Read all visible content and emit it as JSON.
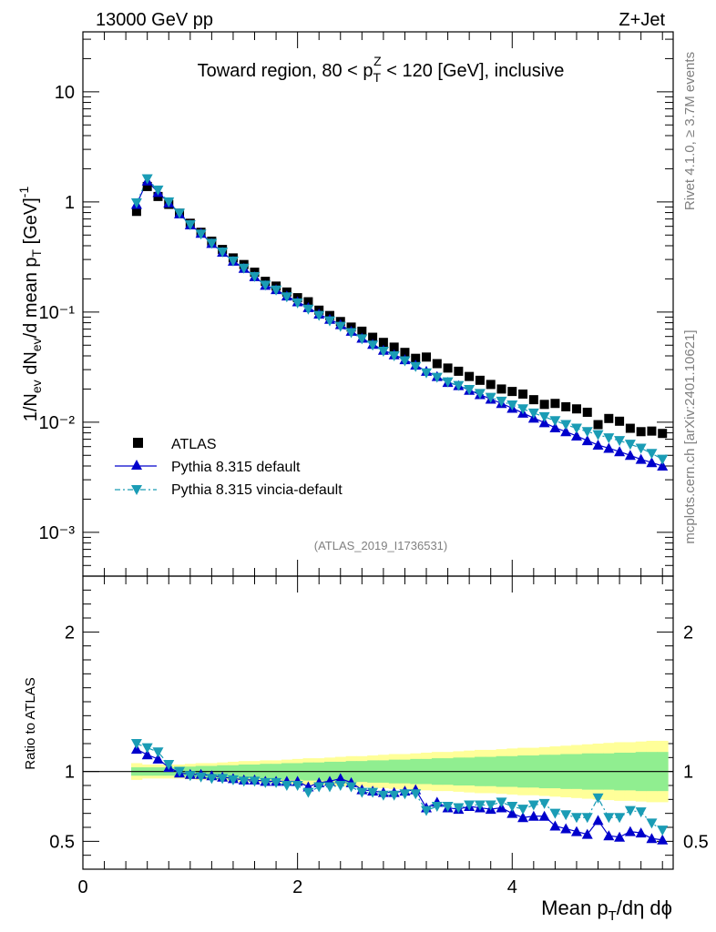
{
  "chart_data": [
    {
      "type": "scatter",
      "panel": "main",
      "y_scale": "log",
      "xlim": [
        0,
        5.5
      ],
      "ylim": [
        0.0004,
        35
      ],
      "top_left_label": "13000 GeV pp",
      "top_right_label": "Z+Jet",
      "title": "Toward region, 80 < p_T^Z < 120 [GeV], inclusive",
      "ylabel": "1/N_ev dN_ev/d mean p_T [GeV]^-1",
      "y_ticks": [
        {
          "label": "10",
          "value": 10
        },
        {
          "label": "1",
          "value": 1
        },
        {
          "label": "10⁻¹",
          "value": 0.1
        },
        {
          "label": "10⁻²",
          "value": 0.01
        },
        {
          "label": "10⁻³",
          "value": 0.001
        }
      ],
      "watermark": "(ATLAS_2019_I1736531)",
      "legend": [
        "ATLAS",
        "Pythia 8.315 default",
        "Pythia 8.315 vincia-default"
      ],
      "x": [
        0.5,
        0.6,
        0.7,
        0.8,
        0.9,
        1.0,
        1.1,
        1.2,
        1.3,
        1.4,
        1.5,
        1.6,
        1.7,
        1.8,
        1.9,
        2.0,
        2.1,
        2.2,
        2.3,
        2.4,
        2.5,
        2.6,
        2.7,
        2.8,
        2.9,
        3.0,
        3.1,
        3.2,
        3.3,
        3.4,
        3.5,
        3.6,
        3.7,
        3.8,
        3.9,
        4.0,
        4.1,
        4.2,
        4.3,
        4.4,
        4.5,
        4.6,
        4.7,
        4.8,
        4.9,
        5.0,
        5.1,
        5.2,
        5.3,
        5.4
      ],
      "series": [
        {
          "name": "ATLAS",
          "marker": "square",
          "color": "#000000",
          "values": [
            0.82,
            1.38,
            1.12,
            0.95,
            0.79,
            0.64,
            0.53,
            0.44,
            0.37,
            0.31,
            0.27,
            0.23,
            0.19,
            0.172,
            0.152,
            0.135,
            0.124,
            0.104,
            0.093,
            0.082,
            0.073,
            0.067,
            0.059,
            0.053,
            0.048,
            0.043,
            0.038,
            0.039,
            0.034,
            0.031,
            0.029,
            0.026,
            0.024,
            0.022,
            0.02,
            0.019,
            0.018,
            0.016,
            0.0145,
            0.0148,
            0.0138,
            0.0132,
            0.0123,
            0.0095,
            0.0108,
            0.0102,
            0.0088,
            0.0082,
            0.0083,
            0.0079
          ]
        },
        {
          "name": "Pythia 8.315 default",
          "marker": "triangle-up",
          "color": "#0000cc",
          "values": [
            0.95,
            1.55,
            1.22,
            0.98,
            0.78,
            0.62,
            0.52,
            0.42,
            0.35,
            0.29,
            0.25,
            0.21,
            0.175,
            0.16,
            0.14,
            0.124,
            0.11,
            0.096,
            0.086,
            0.077,
            0.067,
            0.058,
            0.051,
            0.045,
            0.041,
            0.037,
            0.033,
            0.029,
            0.026,
            0.023,
            0.0215,
            0.0195,
            0.0178,
            0.0162,
            0.0148,
            0.0134,
            0.0121,
            0.0109,
            0.0099,
            0.0089,
            0.0082,
            0.0075,
            0.0068,
            0.0062,
            0.0058,
            0.0054,
            0.005,
            0.0046,
            0.0043,
            0.004
          ]
        },
        {
          "name": "Pythia 8.315 vincia-default",
          "marker": "triangle-down",
          "color": "#1a9cb5",
          "values": [
            0.98,
            1.62,
            1.28,
            1.0,
            0.79,
            0.62,
            0.51,
            0.42,
            0.35,
            0.29,
            0.25,
            0.21,
            0.175,
            0.158,
            0.137,
            0.121,
            0.106,
            0.093,
            0.083,
            0.074,
            0.065,
            0.057,
            0.05,
            0.044,
            0.04,
            0.036,
            0.032,
            0.028,
            0.0255,
            0.0232,
            0.0215,
            0.0198,
            0.0182,
            0.0168,
            0.0155,
            0.0143,
            0.0132,
            0.0121,
            0.0112,
            0.0103,
            0.0095,
            0.0088,
            0.0082,
            0.0077,
            0.0072,
            0.0068,
            0.0063,
            0.0058,
            0.0052,
            0.0046
          ]
        }
      ]
    },
    {
      "type": "scatter",
      "panel": "ratio",
      "xlim": [
        0,
        5.5
      ],
      "ylim": [
        0.3,
        2.4
      ],
      "ylabel": "Ratio to ATLAS",
      "xlabel": "Mean p_T/dη dϕ",
      "x_ticks": [
        "0",
        "2",
        "4"
      ],
      "y_ticks": [
        "0.5",
        "1",
        "2"
      ],
      "x": [
        0.5,
        0.6,
        0.7,
        0.8,
        0.9,
        1.0,
        1.1,
        1.2,
        1.3,
        1.4,
        1.5,
        1.6,
        1.7,
        1.8,
        1.9,
        2.0,
        2.1,
        2.2,
        2.3,
        2.4,
        2.5,
        2.6,
        2.7,
        2.8,
        2.9,
        3.0,
        3.1,
        3.2,
        3.3,
        3.4,
        3.5,
        3.6,
        3.7,
        3.8,
        3.9,
        4.0,
        4.1,
        4.2,
        4.3,
        4.4,
        4.5,
        4.6,
        4.7,
        4.8,
        4.9,
        5.0,
        5.1,
        5.2,
        5.3,
        5.4
      ],
      "band_stat_halfwidth": [
        0.03,
        0.03,
        0.03,
        0.03,
        0.035,
        0.035,
        0.04,
        0.04,
        0.045,
        0.045,
        0.05,
        0.05,
        0.055,
        0.055,
        0.06,
        0.06,
        0.065,
        0.065,
        0.07,
        0.07,
        0.075,
        0.075,
        0.08,
        0.08,
        0.085,
        0.085,
        0.09,
        0.09,
        0.095,
        0.095,
        0.1,
        0.1,
        0.105,
        0.105,
        0.11,
        0.11,
        0.115,
        0.115,
        0.12,
        0.12,
        0.125,
        0.125,
        0.13,
        0.13,
        0.13,
        0.135,
        0.135,
        0.14,
        0.14,
        0.14
      ],
      "band_total_halfwidth": [
        0.06,
        0.05,
        0.05,
        0.05,
        0.05,
        0.055,
        0.06,
        0.06,
        0.065,
        0.07,
        0.075,
        0.075,
        0.08,
        0.08,
        0.085,
        0.09,
        0.095,
        0.095,
        0.1,
        0.105,
        0.11,
        0.11,
        0.115,
        0.12,
        0.125,
        0.125,
        0.13,
        0.135,
        0.14,
        0.14,
        0.145,
        0.15,
        0.155,
        0.155,
        0.16,
        0.165,
        0.17,
        0.17,
        0.175,
        0.18,
        0.185,
        0.19,
        0.195,
        0.2,
        0.205,
        0.21,
        0.21,
        0.215,
        0.22,
        0.22
      ],
      "series": [
        {
          "name": "Pythia 8.315 default",
          "marker": "triangle-up",
          "color": "#0000cc",
          "values": [
            1.16,
            1.12,
            1.09,
            1.03,
            0.99,
            0.98,
            0.98,
            0.97,
            0.96,
            0.95,
            0.94,
            0.94,
            0.93,
            0.93,
            0.93,
            0.93,
            0.89,
            0.92,
            0.93,
            0.95,
            0.92,
            0.87,
            0.86,
            0.85,
            0.85,
            0.86,
            0.87,
            0.74,
            0.78,
            0.74,
            0.73,
            0.75,
            0.74,
            0.73,
            0.74,
            0.7,
            0.67,
            0.68,
            0.68,
            0.61,
            0.59,
            0.57,
            0.55,
            0.65,
            0.54,
            0.53,
            0.57,
            0.56,
            0.52,
            0.51
          ]
        },
        {
          "name": "Pythia 8.315 vincia-default",
          "marker": "triangle-down",
          "color": "#1a9cb5",
          "values": [
            1.2,
            1.17,
            1.14,
            1.05,
            1.0,
            0.97,
            0.96,
            0.95,
            0.95,
            0.94,
            0.93,
            0.93,
            0.92,
            0.92,
            0.9,
            0.9,
            0.85,
            0.89,
            0.89,
            0.9,
            0.89,
            0.85,
            0.85,
            0.83,
            0.83,
            0.84,
            0.84,
            0.72,
            0.75,
            0.75,
            0.74,
            0.76,
            0.76,
            0.76,
            0.78,
            0.75,
            0.73,
            0.76,
            0.77,
            0.7,
            0.69,
            0.67,
            0.67,
            0.81,
            0.67,
            0.67,
            0.72,
            0.71,
            0.63,
            0.58
          ]
        }
      ]
    }
  ],
  "side_labels": {
    "rivet": "Rivet 4.1.0, ≥ 3.7M events",
    "mcplots": "mcplots.cern.ch [arXiv:2401.10621]"
  }
}
